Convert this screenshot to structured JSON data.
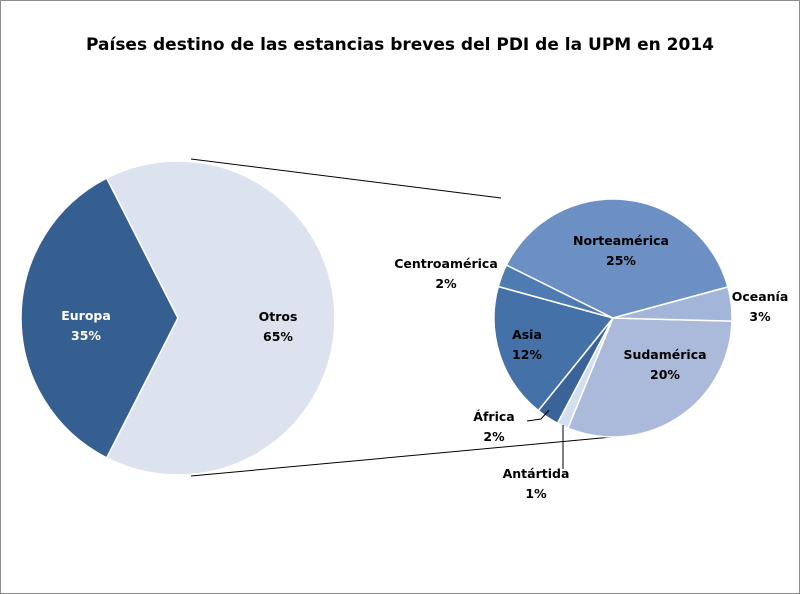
{
  "chart_data": {
    "type": "pie",
    "subtype": "pie-of-pie",
    "title": "Países destino de las estancias breves del PDI de la UPM en 2014",
    "primary": [
      {
        "label": "Europa",
        "value": 35,
        "text": "35%",
        "color": "#365f91"
      },
      {
        "label": "Otros",
        "value": 65,
        "text": "65%",
        "color": "#dce3ef"
      }
    ],
    "secondary": [
      {
        "label": "Sudamérica",
        "value": 20,
        "text": "20%",
        "color": "#abbadb"
      },
      {
        "label": "Antártida",
        "value": 1,
        "text": "1%",
        "color": "#d3def0"
      },
      {
        "label": "África",
        "value": 2,
        "text": "2%",
        "color": "#3a6399"
      },
      {
        "label": "Asia",
        "value": 12,
        "text": "12%",
        "color": "#4571a9"
      },
      {
        "label": "Centroamérica",
        "value": 2,
        "text": "2%",
        "color": "#4f7bb3"
      },
      {
        "label": "Norteamérica",
        "value": 25,
        "text": "25%",
        "color": "#6c8fc4"
      },
      {
        "label": "Oceanía",
        "value": 3,
        "text": "3%",
        "color": "#a3b5d9"
      }
    ]
  }
}
